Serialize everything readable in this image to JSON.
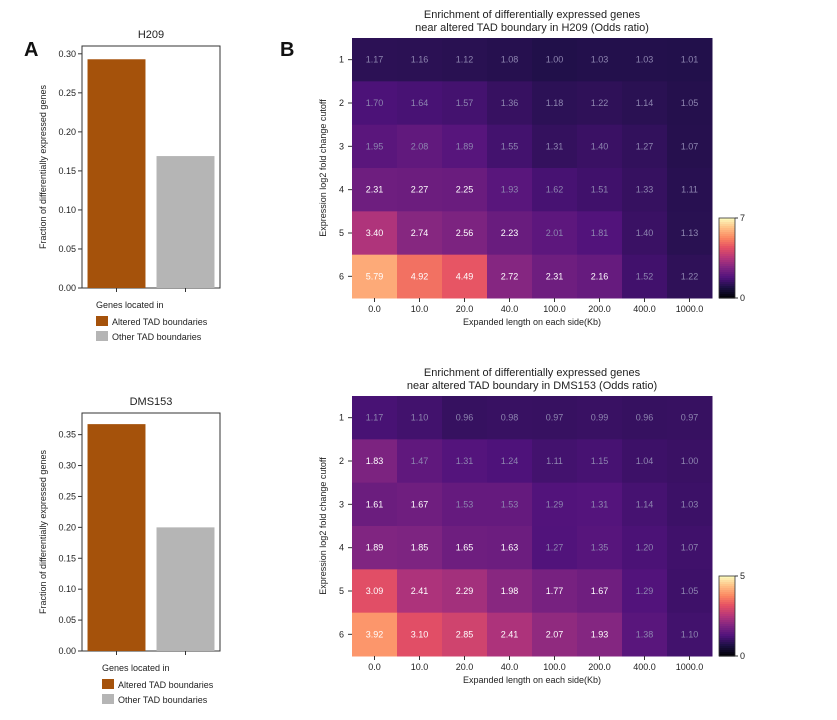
{
  "panels": {
    "a": "A",
    "b": "B"
  },
  "chart_data": [
    {
      "type": "bar",
      "title": "H209",
      "categories": [
        "Altered TAD boundaries",
        "Other TAD boundaries"
      ],
      "values": [
        0.293,
        0.169
      ],
      "ylabel": "Fraction of differentially expressed genes",
      "ylim": [
        0,
        0.31
      ],
      "yticks": [
        "0.00",
        "0.05",
        "0.10",
        "0.15",
        "0.20",
        "0.25",
        "0.30"
      ],
      "colors": [
        "#a5520b",
        "#b5b5b5"
      ],
      "legend_title": "Genes located in",
      "legend": [
        "Altered TAD boundaries",
        "Other TAD boundaries"
      ]
    },
    {
      "type": "heatmap",
      "title_lines": [
        "Enrichment of differentially expressed genes",
        "near altered TAD boundary in H209 (Odds ratio)"
      ],
      "xlabel": "Expanded length on each side(Kb)",
      "ylabel": "Expression log2 fold change cutoff",
      "x": [
        "0.0",
        "10.0",
        "20.0",
        "40.0",
        "100.0",
        "200.0",
        "400.0",
        "1000.0"
      ],
      "y": [
        "1",
        "2",
        "3",
        "4",
        "5",
        "6"
      ],
      "values": [
        [
          1.17,
          1.16,
          1.12,
          1.08,
          1.0,
          1.03,
          1.03,
          1.01
        ],
        [
          1.7,
          1.64,
          1.57,
          1.36,
          1.18,
          1.22,
          1.14,
          1.05
        ],
        [
          1.95,
          2.08,
          1.89,
          1.55,
          1.31,
          1.4,
          1.27,
          1.07
        ],
        [
          2.31,
          2.27,
          2.25,
          1.93,
          1.62,
          1.51,
          1.33,
          1.11
        ],
        [
          3.4,
          2.74,
          2.56,
          2.23,
          2.01,
          1.81,
          1.4,
          1.13
        ],
        [
          5.79,
          4.92,
          4.49,
          2.72,
          2.31,
          2.16,
          1.52,
          1.22
        ]
      ],
      "vmin": 0,
      "vmax": 7,
      "colorbar_ticks": [
        "7",
        "0"
      ]
    },
    {
      "type": "bar",
      "title": "DMS153",
      "categories": [
        "Altered TAD boundaries",
        "Other TAD boundaries"
      ],
      "values": [
        0.367,
        0.2
      ],
      "ylabel": "Fraction of differentially expressed genes",
      "ylim": [
        0,
        0.385
      ],
      "yticks": [
        "0.00",
        "0.05",
        "0.10",
        "0.15",
        "0.20",
        "0.25",
        "0.30",
        "0.35"
      ],
      "colors": [
        "#a5520b",
        "#b5b5b5"
      ],
      "legend_title": "Genes located in",
      "legend": [
        "Altered TAD boundaries",
        "Other TAD boundaries"
      ]
    },
    {
      "type": "heatmap",
      "title_lines": [
        "Enrichment of differentially expressed genes",
        "near altered TAD boundary in DMS153 (Odds ratio)"
      ],
      "xlabel": "Expanded length on each side(Kb)",
      "ylabel": "Expression log2 fold change cutoff",
      "x": [
        "0.0",
        "10.0",
        "20.0",
        "40.0",
        "100.0",
        "200.0",
        "400.0",
        "1000.0"
      ],
      "y": [
        "1",
        "2",
        "3",
        "4",
        "5",
        "6"
      ],
      "values": [
        [
          1.17,
          1.1,
          0.96,
          0.98,
          0.97,
          0.99,
          0.96,
          0.97
        ],
        [
          1.83,
          1.47,
          1.31,
          1.24,
          1.11,
          1.15,
          1.04,
          1.0
        ],
        [
          1.61,
          1.67,
          1.53,
          1.53,
          1.29,
          1.31,
          1.14,
          1.03
        ],
        [
          1.89,
          1.85,
          1.65,
          1.63,
          1.27,
          1.35,
          1.2,
          1.07
        ],
        [
          3.09,
          2.41,
          2.29,
          1.98,
          1.77,
          1.67,
          1.29,
          1.05
        ],
        [
          3.92,
          3.1,
          2.85,
          2.41,
          2.07,
          1.93,
          1.38,
          1.1
        ]
      ],
      "vmin": 0,
      "vmax": 5,
      "colorbar_ticks": [
        "5",
        "0"
      ]
    }
  ]
}
